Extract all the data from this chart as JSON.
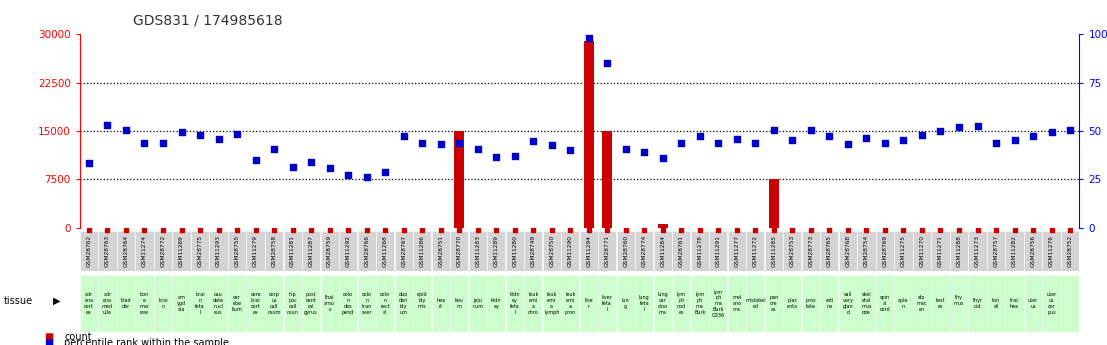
{
  "title": "GDS831 / 174985618",
  "samples": [
    "GSM28762",
    "GSM28763",
    "GSM28764",
    "GSM11274",
    "GSM28772",
    "GSM11269",
    "GSM28775",
    "GSM11293",
    "GSM28755",
    "GSM11279",
    "GSM28758",
    "GSM11281",
    "GSM11287",
    "GSM28759",
    "GSM11292",
    "GSM28766",
    "GSM11268",
    "GSM28767",
    "GSM11286",
    "GSM28751",
    "GSM28770",
    "GSM11283",
    "GSM11289",
    "GSM11280",
    "GSM28749",
    "GSM28750",
    "GSM11290",
    "GSM11294",
    "GSM28771",
    "GSM28760",
    "GSM28774",
    "GSM11284",
    "GSM28761",
    "GSM11278",
    "GSM11291",
    "GSM11277",
    "GSM11272",
    "GSM11285",
    "GSM28753",
    "GSM28773",
    "GSM28765",
    "GSM28768",
    "GSM28754",
    "GSM28769",
    "GSM11275",
    "GSM11270",
    "GSM11271",
    "GSM11288",
    "GSM11273",
    "GSM28757",
    "GSM11282",
    "GSM28756",
    "GSM11276",
    "GSM28752"
  ],
  "tissues": [
    "adr\nena\ncort\nex",
    "adr\nena\nmed\nulla",
    "blad\nder",
    "bon\ne\nmar\nrow",
    "brai\nn",
    "am\nygd\nala",
    "brai\nn\nfeta\nl",
    "cau\ndate\nnucl\neus",
    "cer\nebe\nllum",
    "cere\nbral\ncort\nex",
    "corp\nus\ncall\nosum",
    "hip\npoc\ncall\nosun",
    "post\ncent\nral\ngyrus",
    "thal\namu\ns",
    "colo\nn\ndes\npend",
    "colo\nn\ntran\nsver",
    "colo\nn\nrect\nal",
    "duo\nden\nidy\num",
    "epid\nidy\nmis\n",
    "hea\nrt",
    "lieu\nm",
    "jeju\nnum",
    "kidn\ney",
    "kidn\ney\nfeta\nl",
    "leuk\nemi\na\nchro",
    "leuk\nemi\na\nlymph",
    "leuk\nemi\na\npron",
    "live\nr",
    "liver\nfeta\nl",
    "lun\ng",
    "lung\nfeta\nl",
    "lung\ncar\ncino\nma",
    "lym\nph\nnod\nes",
    "lym\nph\nma\nBurk",
    "lym\nph\nma\nBurk\nG336",
    "mel\nano\nma",
    "mislabel\ned",
    "pan\ncre\nas",
    "plac\nenta",
    "pros\ntate",
    "reti\nna",
    "sali\nvary\nglan\nd",
    "skel\netal\nmus\ncde",
    "spin\nal\ncord",
    "aple\nn",
    "sto\nmac\nen",
    "test\nes",
    "thy\nmus\n",
    "thyr\noid",
    "ton\nsil",
    "trac\nhea",
    "uter\nus",
    "uter\nus\ncor\npus",
    ""
  ],
  "count": [
    0,
    0,
    0,
    0,
    0,
    0,
    0,
    0,
    0,
    0,
    0,
    0,
    0,
    0,
    0,
    0,
    0,
    0,
    0,
    0,
    15000,
    0,
    0,
    0,
    0,
    0,
    0,
    29000,
    15000,
    0,
    0,
    500,
    0,
    0,
    0,
    0,
    0,
    7500,
    0,
    0,
    0,
    0,
    0,
    0,
    0,
    0,
    0,
    0,
    0,
    0,
    0,
    0,
    0,
    0
  ],
  "percentile": [
    10000,
    16000,
    15200,
    13200,
    13200,
    14900,
    14400,
    13800,
    14500,
    10500,
    12200,
    9500,
    10200,
    9200,
    8200,
    7800,
    8600,
    14200,
    13200,
    13000,
    13200,
    12200,
    11000,
    11200,
    13400,
    12800,
    12000,
    29500,
    25500,
    12200,
    11800,
    10800,
    13200,
    14200,
    13200,
    13800,
    13200,
    15200,
    13600,
    15200,
    14200,
    13000,
    14000,
    13200,
    13600,
    14400,
    15000,
    15600,
    15800,
    13200,
    13600,
    14200,
    14800,
    15200
  ],
  "ylim": [
    0,
    30000
  ],
  "yticks_left": [
    0,
    7500,
    15000,
    22500,
    30000
  ],
  "ytick_labels_left": [
    "0",
    "7500",
    "15000",
    "22500",
    "30000"
  ],
  "ytick_labels_right": [
    "0",
    "25",
    "50",
    "75",
    "100%"
  ],
  "bar_color": "#CC0000",
  "scatter_color": "#0000CC",
  "bg_plot": "#ffffff",
  "bg_tissue": "#ccffcc",
  "bg_sample": "#d3d3d3",
  "title_color": "#333333"
}
